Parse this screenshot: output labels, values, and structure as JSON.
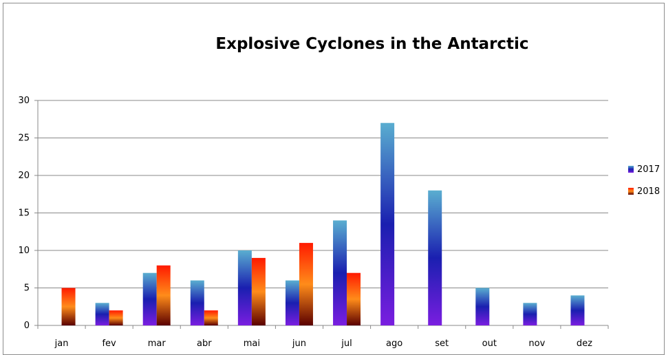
{
  "chart_data": {
    "type": "bar",
    "title": "Explosive Cyclones in the Antarctic",
    "xlabel": "",
    "ylabel": "",
    "categories": [
      "jan",
      "fev",
      "mar",
      "abr",
      "mai",
      "jun",
      "jul",
      "ago",
      "set",
      "out",
      "nov",
      "dez"
    ],
    "series": [
      {
        "name": "2017",
        "values": [
          0,
          3,
          7,
          6,
          10,
          6,
          14,
          27,
          18,
          5,
          3,
          4
        ],
        "colors": [
          "#5aaed0",
          "#1a1fb0",
          "#7a1ee0"
        ]
      },
      {
        "name": "2018",
        "values": [
          5,
          2,
          8,
          2,
          9,
          11,
          7,
          0,
          0,
          0,
          0,
          0
        ],
        "colors": [
          "#ff1a00",
          "#ff8c1a",
          "#5a0000"
        ]
      }
    ],
    "ylim": [
      0,
      30
    ],
    "yticks": [
      0,
      5,
      10,
      15,
      20,
      25,
      30
    ],
    "grid": true,
    "legend": "right",
    "grid_color": "#888888"
  }
}
